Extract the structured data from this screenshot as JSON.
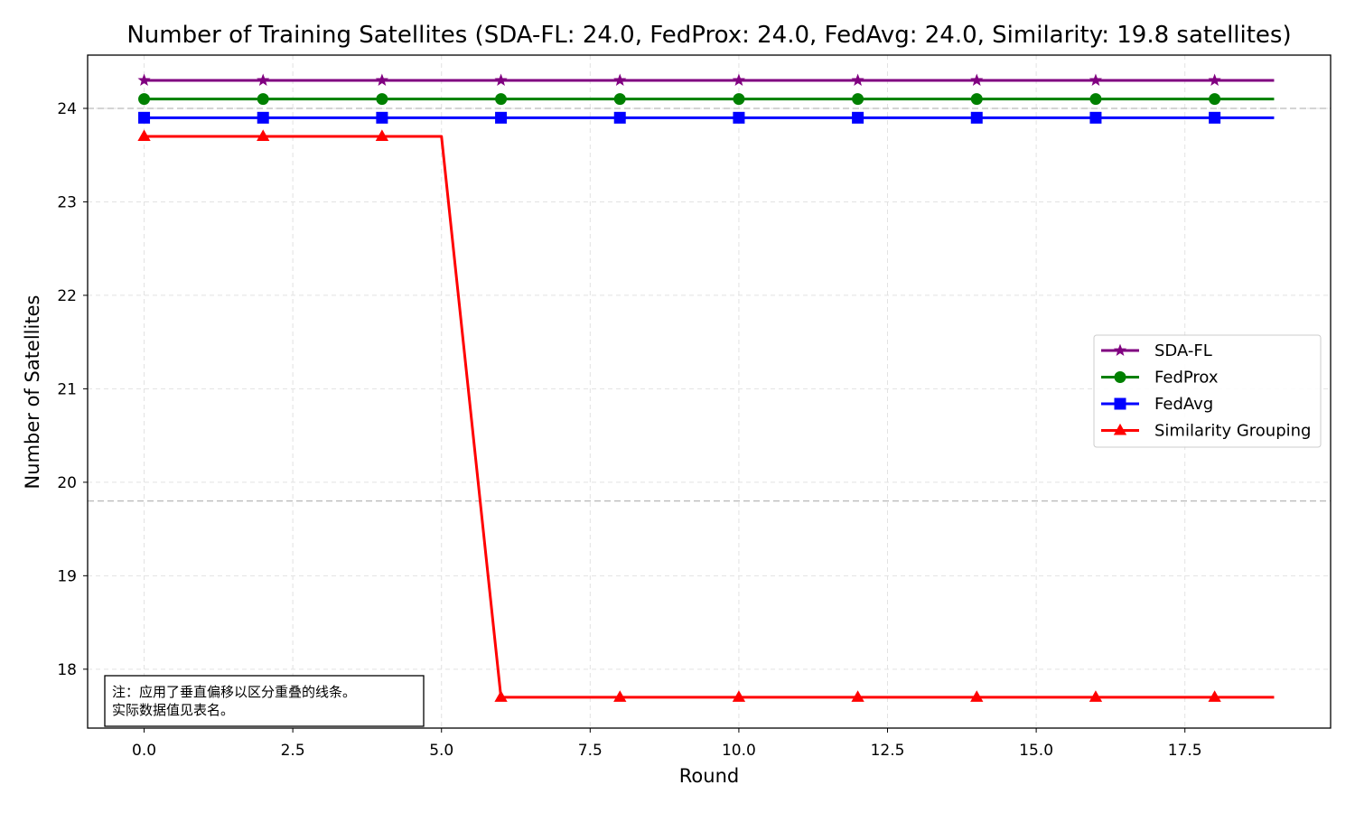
{
  "chart_data": {
    "type": "line",
    "title": "Number of Training Satellites (SDA-FL: 24.0, FedProx: 24.0, FedAvg: 24.0, Similarity: 19.8 satellites)",
    "xlabel": "Round",
    "ylabel": "Number of Satellites",
    "xlim": [
      -0.95,
      19.95
    ],
    "ylim": [
      17.37,
      24.57
    ],
    "xticks": [
      0.0,
      2.5,
      5.0,
      7.5,
      10.0,
      12.5,
      15.0,
      17.5
    ],
    "xtick_labels": [
      "0.0",
      "2.5",
      "5.0",
      "7.5",
      "10.0",
      "12.5",
      "15.0",
      "17.5"
    ],
    "yticks": [
      18,
      19,
      20,
      21,
      22,
      23,
      24
    ],
    "ytick_labels": [
      "18",
      "19",
      "20",
      "21",
      "22",
      "23",
      "24"
    ],
    "grid": true,
    "legend_position": "center-right",
    "reference_lines": [
      {
        "y": 24.0,
        "color": "#bbbbbb",
        "style": "dashed"
      },
      {
        "y": 19.8,
        "color": "#bbbbbb",
        "style": "dashed"
      }
    ],
    "x": [
      0,
      1,
      2,
      3,
      4,
      5,
      6,
      7,
      8,
      9,
      10,
      11,
      12,
      13,
      14,
      15,
      16,
      17,
      18,
      19
    ],
    "marker_every": 2,
    "series": [
      {
        "name": "SDA-FL",
        "color": "#800080",
        "marker": "star",
        "values": [
          24.3,
          24.3,
          24.3,
          24.3,
          24.3,
          24.3,
          24.3,
          24.3,
          24.3,
          24.3,
          24.3,
          24.3,
          24.3,
          24.3,
          24.3,
          24.3,
          24.3,
          24.3,
          24.3,
          24.3
        ]
      },
      {
        "name": "FedProx",
        "color": "#008000",
        "marker": "circle",
        "values": [
          24.1,
          24.1,
          24.1,
          24.1,
          24.1,
          24.1,
          24.1,
          24.1,
          24.1,
          24.1,
          24.1,
          24.1,
          24.1,
          24.1,
          24.1,
          24.1,
          24.1,
          24.1,
          24.1,
          24.1
        ]
      },
      {
        "name": "FedAvg",
        "color": "#0000ff",
        "marker": "square",
        "values": [
          23.9,
          23.9,
          23.9,
          23.9,
          23.9,
          23.9,
          23.9,
          23.9,
          23.9,
          23.9,
          23.9,
          23.9,
          23.9,
          23.9,
          23.9,
          23.9,
          23.9,
          23.9,
          23.9,
          23.9
        ]
      },
      {
        "name": "Similarity Grouping",
        "color": "#ff0000",
        "marker": "triangle",
        "values": [
          23.7,
          23.7,
          23.7,
          23.7,
          23.7,
          23.7,
          17.7,
          17.7,
          17.7,
          17.7,
          17.7,
          17.7,
          17.7,
          17.7,
          17.7,
          17.7,
          17.7,
          17.7,
          17.7,
          17.7
        ]
      }
    ],
    "note_lines": [
      "注：应用了垂直偏移以区分重叠的线条。",
      "实际数据值见表名。"
    ]
  }
}
